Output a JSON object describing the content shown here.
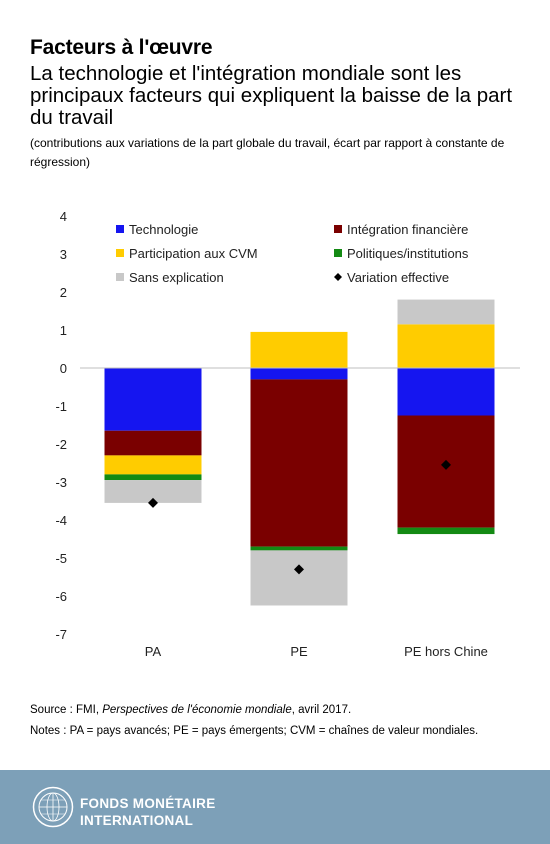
{
  "header": {
    "title": "Facteurs à l'œuvre",
    "subtitle": "La technologie et l'intégration mondiale sont les principaux facteurs qui expliquent la baisse de la part du travail",
    "note": "(contributions aux variations de la part globale du travail, écart par rapport à constante de régression)"
  },
  "chart_data": {
    "type": "bar",
    "stacked": true,
    "categories": [
      "PA",
      "PE",
      "PE hors Chine"
    ],
    "ylim": [
      -7,
      4
    ],
    "yticks": [
      4,
      3,
      2,
      1,
      0,
      -1,
      -2,
      -3,
      -4,
      -5,
      -6,
      -7
    ],
    "grid": false,
    "legend_position": "top",
    "series": [
      {
        "name": "Technologie",
        "color": "#1515f0",
        "values": [
          -1.65,
          -0.3,
          -1.25
        ]
      },
      {
        "name": "Intégration financière",
        "color": "#7a0000",
        "values": [
          -0.65,
          -4.4,
          -2.95
        ]
      },
      {
        "name": "Participation aux CVM",
        "color": "#ffcc00",
        "values": [
          -0.5,
          0.95,
          1.15
        ]
      },
      {
        "name": "Politiques/institutions",
        "color": "#138a13",
        "values": [
          -0.15,
          -0.1,
          -0.17
        ]
      },
      {
        "name": "Sans explication",
        "color": "#c8c8c8",
        "values": [
          -0.6,
          -1.45,
          0.65
        ]
      }
    ],
    "markers": {
      "name": "Variation effective",
      "color": "#000000",
      "values": [
        -3.55,
        -5.3,
        -2.55
      ]
    }
  },
  "footer": {
    "source_prefix": "Source : FMI, ",
    "source_italic": "Perspectives de l'économie mondiale",
    "source_suffix": ", avril 2017.",
    "notes": "Notes : PA = pays avancés; PE = pays émergents; CVM = chaînes de valeur mondiales.",
    "org_line1": "FONDS MONÉTAIRE",
    "org_line2": "INTERNATIONAL",
    "bar_color": "#7da0b8"
  }
}
